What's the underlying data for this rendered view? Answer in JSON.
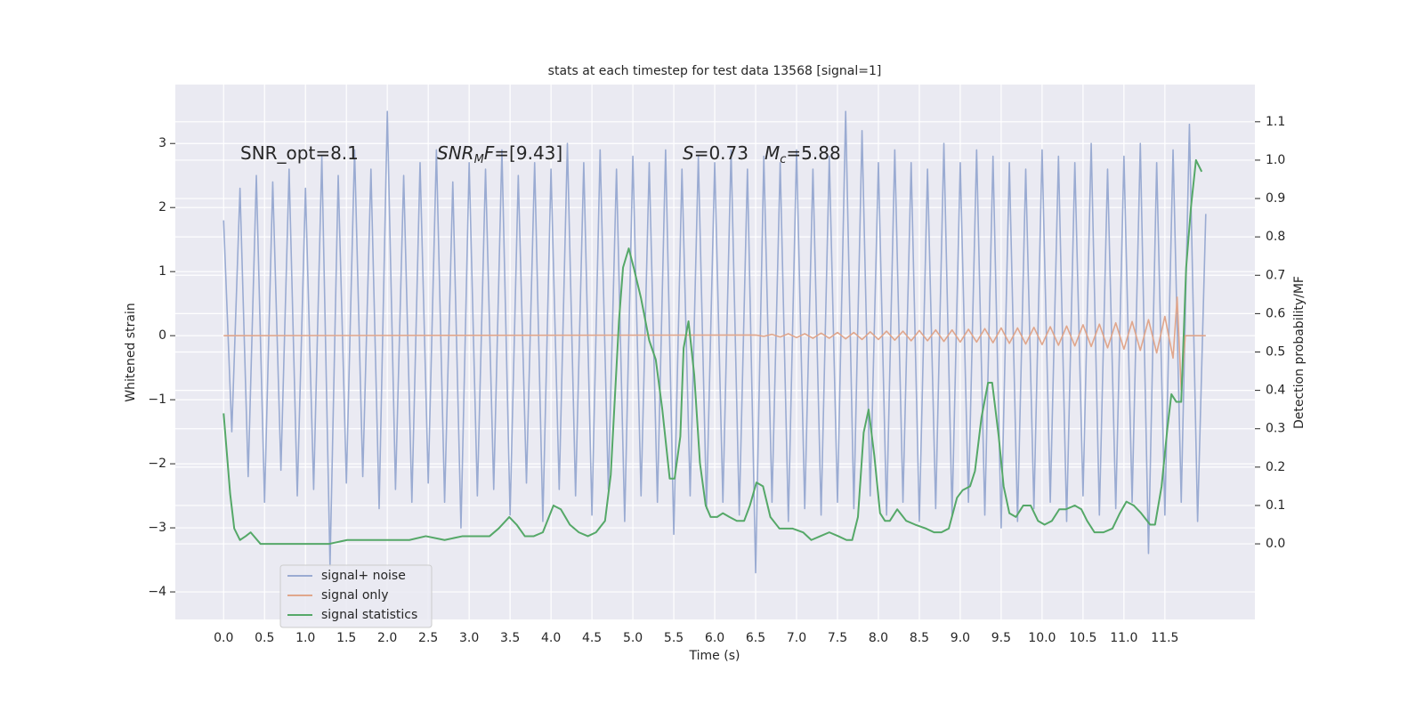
{
  "chart_data": {
    "type": "line",
    "title": "stats at each timestep for test data 13568 [signal=1]",
    "x_label": "Time (s)",
    "y_label": "Whitened strain",
    "y2_label": "Detection probability/MF",
    "annotations": [
      {
        "parts": [
          "SNR_opt=8.1"
        ]
      },
      {
        "parts": [
          "SNR",
          "M",
          "F",
          "=[9.43]"
        ]
      },
      {
        "parts": [
          "S",
          "=0.73",
          "M",
          "c",
          "=5.88"
        ]
      }
    ],
    "xlim": [
      -0.59,
      12.6
    ],
    "ylim": [
      -4.43,
      3.92
    ],
    "y2lim": [
      -0.197,
      1.197
    ],
    "xticks": [
      {
        "value": 0,
        "label": "0.0"
      },
      0.5,
      {
        "value": 1,
        "label": "1.0"
      },
      1.5,
      {
        "value": 2,
        "label": "2.0"
      },
      2.5,
      {
        "value": 3,
        "label": "3.0"
      },
      3.5,
      {
        "value": 4,
        "label": "4.0"
      },
      4.5,
      {
        "value": 5,
        "label": "5.0"
      },
      5.5,
      {
        "value": 6,
        "label": "6.0"
      },
      6.5,
      {
        "value": 7,
        "label": "7.0"
      },
      7.5,
      {
        "value": 8,
        "label": "8.0"
      },
      8.5,
      {
        "value": 9,
        "label": "9.0"
      },
      9.5,
      {
        "value": 10,
        "label": "10.0"
      },
      10.5,
      {
        "value": 11,
        "label": "11.0"
      },
      11.5
    ],
    "yticks": [
      {
        "value": -4,
        "label": "−4"
      },
      {
        "value": -3,
        "label": "−3"
      },
      {
        "value": -2,
        "label": "−2"
      },
      {
        "value": -1,
        "label": "−1"
      },
      0,
      1,
      2,
      3
    ],
    "y2ticks": [
      {
        "value": 0,
        "label": "0.0"
      },
      0.1,
      0.2,
      0.3,
      0.4,
      0.5,
      0.6,
      0.7,
      0.8,
      0.9,
      {
        "value": 1,
        "label": "1.0"
      },
      1.1
    ],
    "grid": true,
    "legend": "lower left",
    "series": [
      {
        "name": "signal+ noise",
        "color": "#9aabd2",
        "x": [
          0.0,
          0.1,
          0.2,
          0.3,
          0.4,
          0.5,
          0.6,
          0.7,
          0.8,
          0.9,
          1.0,
          1.1,
          1.2,
          1.3,
          1.4,
          1.5,
          1.6,
          1.7,
          1.8,
          1.9,
          2.0,
          2.1,
          2.2,
          2.3,
          2.4,
          2.5,
          2.6,
          2.7,
          2.8,
          2.9,
          3.0,
          3.1,
          3.2,
          3.3,
          3.4,
          3.5,
          3.6,
          3.7,
          3.8,
          3.9,
          4.0,
          4.1,
          4.2,
          4.3,
          4.4,
          4.5,
          4.6,
          4.7,
          4.8,
          4.9,
          5.0,
          5.1,
          5.2,
          5.3,
          5.4,
          5.5,
          5.6,
          5.7,
          5.8,
          5.9,
          6.0,
          6.1,
          6.2,
          6.3,
          6.4,
          6.5,
          6.6,
          6.7,
          6.8,
          6.9,
          7.0,
          7.1,
          7.2,
          7.3,
          7.4,
          7.5,
          7.6,
          7.7,
          7.8,
          7.9,
          8.0,
          8.1,
          8.2,
          8.3,
          8.4,
          8.5,
          8.6,
          8.7,
          8.8,
          8.9,
          9.0,
          9.1,
          9.2,
          9.3,
          9.4,
          9.5,
          9.6,
          9.7,
          9.8,
          9.9,
          10.0,
          10.1,
          10.2,
          10.3,
          10.4,
          10.5,
          10.6,
          10.7,
          10.8,
          10.9,
          11.0,
          11.1,
          11.2,
          11.3,
          11.4,
          11.5,
          11.6,
          11.7,
          11.8,
          11.9,
          12.0
        ],
        "values": [
          1.8,
          -1.5,
          2.3,
          -2.2,
          2.5,
          -2.6,
          2.4,
          -2.1,
          2.6,
          -2.5,
          2.3,
          -2.4,
          2.8,
          -3.6,
          2.5,
          -2.3,
          2.9,
          -2.2,
          2.6,
          -2.7,
          3.5,
          -2.4,
          2.5,
          -2.6,
          2.7,
          -2.3,
          2.9,
          -2.6,
          2.4,
          -3.0,
          2.7,
          -2.5,
          2.6,
          -2.4,
          2.9,
          -2.8,
          2.5,
          -2.3,
          2.7,
          -2.9,
          2.6,
          -2.4,
          3.0,
          -2.5,
          2.7,
          -2.8,
          2.9,
          -2.4,
          2.6,
          -2.9,
          2.8,
          -2.5,
          2.7,
          -2.6,
          2.9,
          -3.1,
          2.6,
          -2.5,
          2.8,
          -2.7,
          2.7,
          -2.6,
          2.9,
          -2.8,
          2.6,
          -3.7,
          2.8,
          -2.6,
          2.7,
          -2.9,
          2.9,
          -2.7,
          2.6,
          -2.8,
          2.8,
          -2.6,
          3.5,
          -2.7,
          3.2,
          -2.5,
          2.7,
          -2.8,
          2.9,
          -2.6,
          2.7,
          -2.9,
          2.6,
          -2.7,
          3.0,
          -2.8,
          2.7,
          -2.6,
          2.9,
          -2.8,
          2.8,
          -3.0,
          2.7,
          -2.9,
          2.6,
          -2.7,
          2.9,
          -2.6,
          2.8,
          -2.9,
          2.7,
          -2.5,
          3.0,
          -2.8,
          2.6,
          -2.7,
          2.8,
          -2.6,
          3.0,
          -3.4,
          2.7,
          -2.8,
          2.9,
          -2.6,
          3.3,
          -2.9,
          1.9
        ]
      },
      {
        "name": "signal only",
        "color": "#e0a68c",
        "x": [
          0.0,
          6.5,
          6.6,
          6.7,
          6.8,
          6.9,
          7.0,
          7.1,
          7.2,
          7.3,
          7.4,
          7.5,
          7.6,
          7.7,
          7.8,
          7.9,
          8.0,
          8.1,
          8.2,
          8.3,
          8.4,
          8.5,
          8.6,
          8.7,
          8.8,
          8.9,
          9.0,
          9.1,
          9.2,
          9.3,
          9.4,
          9.5,
          9.6,
          9.7,
          9.8,
          9.9,
          10.0,
          10.1,
          10.2,
          10.3,
          10.4,
          10.5,
          10.6,
          10.7,
          10.8,
          10.9,
          11.0,
          11.1,
          11.2,
          11.3,
          11.4,
          11.5,
          11.6,
          11.65,
          11.7,
          11.75,
          12.0
        ],
        "values": [
          0,
          0.01,
          -0.01,
          0.02,
          -0.02,
          0.03,
          -0.03,
          0.03,
          -0.04,
          0.04,
          -0.04,
          0.05,
          -0.05,
          0.05,
          -0.06,
          0.06,
          -0.06,
          0.07,
          -0.07,
          0.07,
          -0.08,
          0.08,
          -0.08,
          0.09,
          -0.09,
          0.09,
          -0.1,
          0.1,
          -0.1,
          0.11,
          -0.11,
          0.12,
          -0.12,
          0.12,
          -0.13,
          0.13,
          -0.14,
          0.14,
          -0.15,
          0.15,
          -0.16,
          0.17,
          -0.17,
          0.18,
          -0.19,
          0.2,
          -0.21,
          0.22,
          -0.23,
          0.25,
          -0.27,
          0.3,
          -0.35,
          0.6,
          -0.85,
          0,
          0
        ]
      },
      {
        "name": "signal statistics",
        "color": "#55a868",
        "axis": "y2",
        "x": [
          0,
          0.08,
          0.13,
          0.2,
          0.27,
          0.33,
          0.45,
          0.65,
          0.86,
          1.08,
          1.29,
          1.51,
          1.73,
          1.89,
          2.05,
          2.27,
          2.47,
          2.7,
          2.92,
          3.07,
          3.25,
          3.36,
          3.49,
          3.58,
          3.68,
          3.79,
          3.9,
          4.03,
          4.12,
          4.23,
          4.34,
          4.45,
          4.55,
          4.66,
          4.73,
          4.83,
          4.88,
          4.95,
          5.01,
          5.1,
          5.2,
          5.28,
          5.36,
          5.45,
          5.51,
          5.58,
          5.62,
          5.68,
          5.75,
          5.82,
          5.89,
          5.95,
          6.03,
          6.1,
          6.18,
          6.27,
          6.36,
          6.43,
          6.51,
          6.59,
          6.68,
          6.79,
          6.95,
          7.08,
          7.18,
          7.29,
          7.4,
          7.51,
          7.61,
          7.68,
          7.75,
          7.82,
          7.88,
          7.95,
          8.02,
          8.08,
          8.14,
          8.23,
          8.34,
          8.45,
          8.58,
          8.68,
          8.77,
          8.86,
          8.96,
          9.03,
          9.12,
          9.18,
          9.26,
          9.34,
          9.39,
          9.47,
          9.53,
          9.6,
          9.68,
          9.77,
          9.86,
          9.95,
          10.03,
          10.12,
          10.21,
          10.29,
          10.4,
          10.48,
          10.55,
          10.64,
          10.75,
          10.86,
          10.95,
          11.03,
          11.12,
          11.21,
          11.32,
          11.38,
          11.46,
          11.53,
          11.58,
          11.64,
          11.7,
          11.76,
          11.82,
          11.88,
          11.95
        ],
        "values": [
          0.34,
          0.13,
          0.04,
          0.01,
          0.02,
          0.03,
          0.0,
          0.0,
          0.0,
          0.0,
          0.0,
          0.01,
          0.01,
          0.01,
          0.01,
          0.01,
          0.02,
          0.01,
          0.02,
          0.02,
          0.02,
          0.04,
          0.07,
          0.05,
          0.02,
          0.02,
          0.03,
          0.1,
          0.09,
          0.05,
          0.03,
          0.02,
          0.03,
          0.06,
          0.18,
          0.58,
          0.72,
          0.77,
          0.72,
          0.64,
          0.53,
          0.48,
          0.35,
          0.17,
          0.17,
          0.28,
          0.51,
          0.58,
          0.44,
          0.21,
          0.1,
          0.07,
          0.07,
          0.08,
          0.07,
          0.06,
          0.06,
          0.1,
          0.16,
          0.15,
          0.07,
          0.04,
          0.04,
          0.03,
          0.01,
          0.02,
          0.03,
          0.02,
          0.01,
          0.01,
          0.07,
          0.29,
          0.35,
          0.23,
          0.08,
          0.06,
          0.06,
          0.09,
          0.06,
          0.05,
          0.04,
          0.03,
          0.03,
          0.04,
          0.12,
          0.14,
          0.15,
          0.19,
          0.33,
          0.42,
          0.42,
          0.28,
          0.15,
          0.08,
          0.07,
          0.1,
          0.1,
          0.06,
          0.05,
          0.06,
          0.09,
          0.09,
          0.1,
          0.09,
          0.06,
          0.03,
          0.03,
          0.04,
          0.08,
          0.11,
          0.1,
          0.08,
          0.05,
          0.05,
          0.15,
          0.3,
          0.39,
          0.37,
          0.37,
          0.72,
          0.88,
          1.0,
          0.97
        ]
      }
    ]
  }
}
